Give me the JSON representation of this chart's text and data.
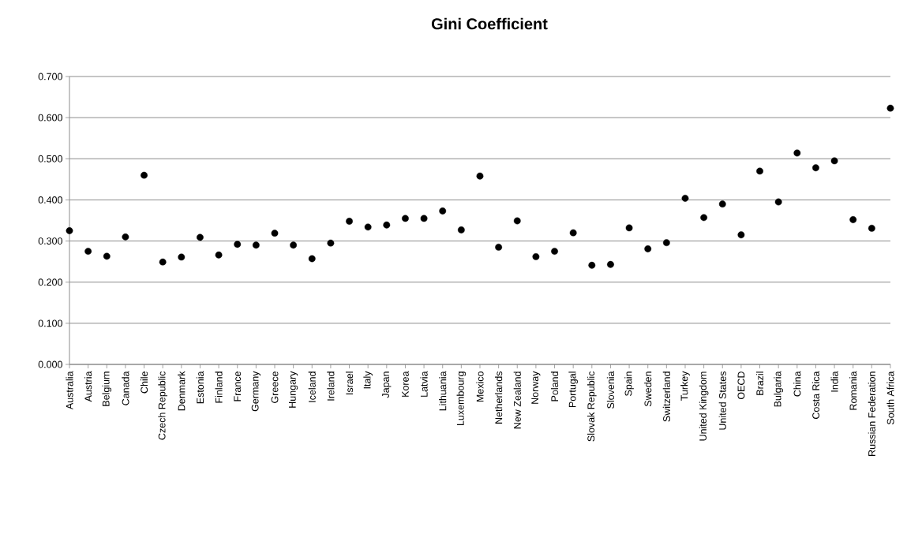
{
  "chart_data": {
    "type": "scatter",
    "title": "Gini Coefficient",
    "categories": [
      "Australia",
      "Austria",
      "Belgium",
      "Canada",
      "Chile",
      "Czech Republic",
      "Denmark",
      "Estonia",
      "Finland",
      "France",
      "Germany",
      "Greece",
      "Hungary",
      "Iceland",
      "Ireland",
      "Israel",
      "Italy",
      "Japan",
      "Korea",
      "Latvia",
      "Lithuania",
      "Luxembourg",
      "Mexico",
      "Netherlands",
      "New Zealand",
      "Norway",
      "Poland",
      "Portugal",
      "Slovak Republic",
      "Slovenia",
      "Spain",
      "Sweden",
      "Switzerland",
      "Turkey",
      "United Kingdom",
      "United States",
      "OECD",
      "Brazil",
      "Bulgaria",
      "China",
      "Costa Rica",
      "India",
      "Romania",
      "Russian Federation",
      "South Africa"
    ],
    "values": [
      0.325,
      0.275,
      0.263,
      0.31,
      0.46,
      0.249,
      0.261,
      0.309,
      0.266,
      0.292,
      0.29,
      0.319,
      0.29,
      0.257,
      0.295,
      0.348,
      0.334,
      0.339,
      0.355,
      0.355,
      0.373,
      0.327,
      0.458,
      0.285,
      0.349,
      0.262,
      0.275,
      0.32,
      0.241,
      0.243,
      0.332,
      0.281,
      0.296,
      0.404,
      0.357,
      0.39,
      0.315,
      0.47,
      0.395,
      0.514,
      0.478,
      0.495,
      0.352,
      0.331,
      0.623
    ],
    "color": "#000000",
    "marker": "circle",
    "grid": "y",
    "ylim": [
      0,
      0.7
    ],
    "yticks": [
      {
        "value": 0,
        "label": "0.000"
      },
      {
        "value": 0.1,
        "label": "0.100"
      },
      {
        "value": 0.2,
        "label": "0.200"
      },
      {
        "value": 0.3,
        "label": "0.300"
      },
      {
        "value": 0.4,
        "label": "0.400"
      },
      {
        "value": 0.5,
        "label": "0.500"
      },
      {
        "value": 0.6,
        "label": "0.600"
      },
      {
        "value": 0.7,
        "label": "0.700"
      }
    ]
  }
}
